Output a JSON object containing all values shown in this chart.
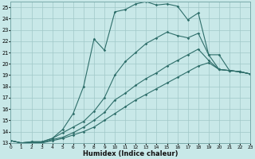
{
  "xlabel": "Humidex (Indice chaleur)",
  "xlim": [
    0,
    23
  ],
  "ylim": [
    13,
    25.5
  ],
  "xticks": [
    0,
    1,
    2,
    3,
    4,
    5,
    6,
    7,
    8,
    9,
    10,
    11,
    12,
    13,
    14,
    15,
    16,
    17,
    18,
    19,
    20,
    21,
    22,
    23
  ],
  "yticks": [
    13,
    14,
    15,
    16,
    17,
    18,
    19,
    20,
    21,
    22,
    23,
    24,
    25
  ],
  "bg_color": "#c8e8e8",
  "line_color": "#2e6e6a",
  "grid_color": "#a0c8c8",
  "lines": [
    [
      13.2,
      13.0,
      13.1,
      13.1,
      13.4,
      14.2,
      15.6,
      18.0,
      22.2,
      21.2,
      24.6,
      24.8,
      25.3,
      25.5,
      25.2,
      25.3,
      25.1,
      23.9,
      24.5,
      20.8,
      19.5,
      19.4,
      19.3,
      19.1
    ],
    [
      13.2,
      13.0,
      13.1,
      13.1,
      13.4,
      13.9,
      14.4,
      14.9,
      15.8,
      17.0,
      19.0,
      20.2,
      21.0,
      21.8,
      22.3,
      22.8,
      22.5,
      22.3,
      22.7,
      20.8,
      20.8,
      19.4,
      19.3,
      19.1
    ],
    [
      13.2,
      13.0,
      13.0,
      13.0,
      13.3,
      13.5,
      13.9,
      14.4,
      15.0,
      15.7,
      16.8,
      17.4,
      18.1,
      18.7,
      19.2,
      19.8,
      20.3,
      20.8,
      21.3,
      20.3,
      19.5,
      19.4,
      19.3,
      19.1
    ],
    [
      13.2,
      13.0,
      13.0,
      13.0,
      13.2,
      13.4,
      13.7,
      14.0,
      14.4,
      15.0,
      15.6,
      16.2,
      16.8,
      17.3,
      17.8,
      18.3,
      18.8,
      19.3,
      19.8,
      20.1,
      19.5,
      19.4,
      19.3,
      19.1
    ]
  ]
}
